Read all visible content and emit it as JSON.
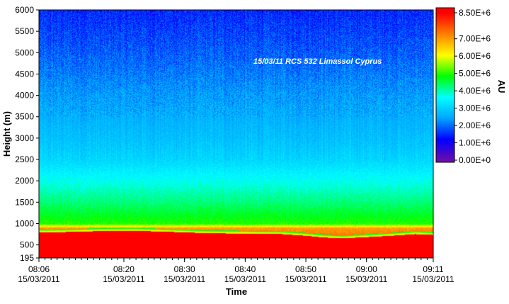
{
  "chart_data": {
    "type": "heatmap",
    "annotation": "15/03/11 RCS 532 Limassol Cyprus",
    "xlabel": "Time",
    "ylabel": "Height (m)",
    "colorbar_label": "AU",
    "x_ticks": [
      {
        "time": "08:06",
        "date": "15/03/2011"
      },
      {
        "time": "08:20",
        "date": "15/03/2011"
      },
      {
        "time": "08:30",
        "date": "15/03/2011"
      },
      {
        "time": "08:40",
        "date": "15/03/2011"
      },
      {
        "time": "08:50",
        "date": "15/03/2011"
      },
      {
        "time": "09:00",
        "date": "15/03/2011"
      },
      {
        "time": "09:11",
        "date": "15/03/2011"
      }
    ],
    "y_ticks": [
      195,
      500,
      1000,
      1500,
      2000,
      2500,
      3000,
      3500,
      4000,
      4500,
      5000,
      5500,
      6000
    ],
    "ylim": [
      195,
      6000
    ],
    "x_range_minutes": [
      0,
      65
    ],
    "colorbar_ticks": [
      {
        "value": 8500000,
        "label": "8.50E+6"
      },
      {
        "value": 7000000,
        "label": "7.00E+6"
      },
      {
        "value": 6000000,
        "label": "6.00E+6"
      },
      {
        "value": 5000000,
        "label": "5.00E+6"
      },
      {
        "value": 4000000,
        "label": "4.00E+6"
      },
      {
        "value": 3000000,
        "label": "3.00E+6"
      },
      {
        "value": 2000000,
        "label": "2.00E+6"
      },
      {
        "value": 1000000,
        "label": "1.00E+6"
      },
      {
        "value": 0,
        "label": "0.00E+0"
      }
    ],
    "colorbar_range": [
      0,
      8500000
    ],
    "boundary_layer_top_m": [
      {
        "minute": 0,
        "height": 800
      },
      {
        "minute": 5,
        "height": 810
      },
      {
        "minute": 10,
        "height": 830
      },
      {
        "minute": 16,
        "height": 835
      },
      {
        "minute": 22,
        "height": 810
      },
      {
        "minute": 28,
        "height": 780
      },
      {
        "minute": 34,
        "height": 770
      },
      {
        "minute": 40,
        "height": 760
      },
      {
        "minute": 44,
        "height": 720
      },
      {
        "minute": 47,
        "height": 680
      },
      {
        "minute": 50,
        "height": 660
      },
      {
        "minute": 54,
        "height": 690
      },
      {
        "minute": 58,
        "height": 720
      },
      {
        "minute": 62,
        "height": 760
      },
      {
        "minute": 65,
        "height": 740
      }
    ],
    "signal_profile": [
      {
        "height": 195,
        "value": 8500000
      },
      {
        "height": 900,
        "value": 7000000
      },
      {
        "height": 1000,
        "value": 5000000
      },
      {
        "height": 1500,
        "value": 4300000
      },
      {
        "height": 2000,
        "value": 3700000
      },
      {
        "height": 2500,
        "value": 3100000
      },
      {
        "height": 3000,
        "value": 2800000
      },
      {
        "height": 4000,
        "value": 2400000
      },
      {
        "height": 5000,
        "value": 1900000
      },
      {
        "height": 6000,
        "value": 1500000
      }
    ]
  },
  "colors": {
    "colormap": [
      "#6a0dad",
      "#0000ff",
      "#00a5ff",
      "#00ffff",
      "#00ff00",
      "#ffff00",
      "#ff8000",
      "#ff0000"
    ],
    "background": "#ffffff",
    "annotation": "#ffffff"
  }
}
